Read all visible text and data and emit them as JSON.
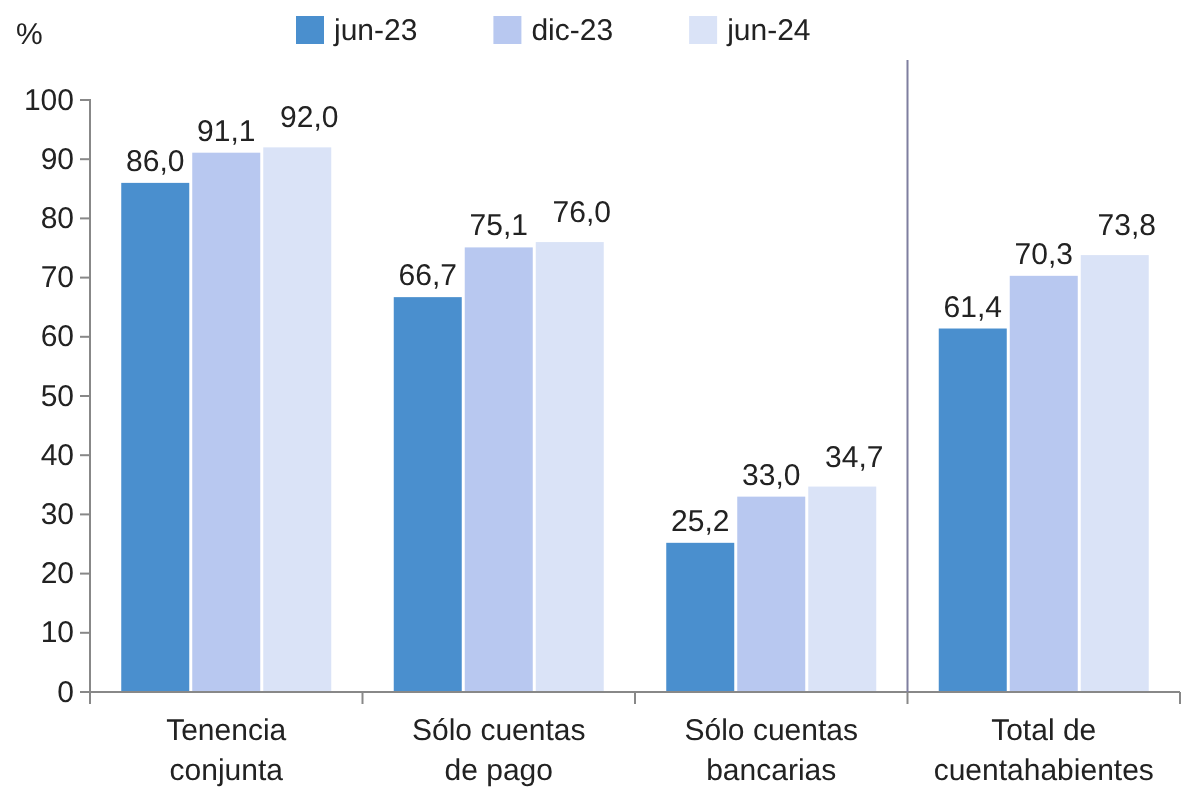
{
  "chart_data": {
    "type": "bar",
    "ylabel": "%",
    "categories": [
      "Tenencia conjunta",
      "Sólo cuentas de pago",
      "Sólo cuentas bancarias",
      "Total de cuentahabientes"
    ],
    "series": [
      {
        "name": "jun-23",
        "color": "#4a8fce",
        "values": [
          86.0,
          66.7,
          25.2,
          61.4
        ],
        "value_labels": [
          "86,0",
          "66,7",
          "25,2",
          "61,4"
        ]
      },
      {
        "name": "dic-23",
        "color": "#b8c8f0",
        "values": [
          91.1,
          75.1,
          33.0,
          70.3
        ],
        "value_labels": [
          "91,1",
          "75,1",
          "33,0",
          "70,3"
        ]
      },
      {
        "name": "jun-24",
        "color": "#dae3f7",
        "values": [
          92.0,
          76.0,
          34.7,
          73.8
        ],
        "value_labels": [
          "92,0",
          "76,0",
          "34,7",
          "73,8"
        ]
      }
    ],
    "ylim": [
      0,
      100
    ],
    "yticks": [
      0,
      10,
      20,
      30,
      40,
      50,
      60,
      70,
      80,
      90,
      100
    ],
    "grid": false,
    "legend": "top"
  }
}
